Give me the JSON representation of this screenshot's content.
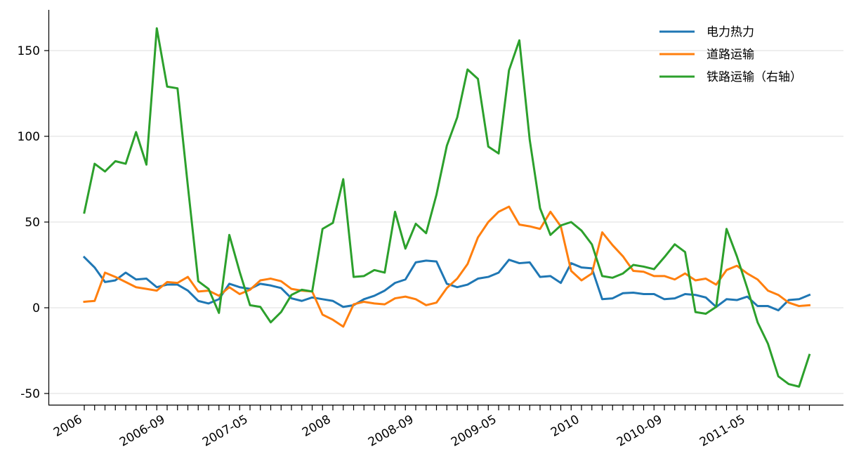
{
  "chart_data": {
    "type": "line",
    "title": "",
    "xlabel": "",
    "ylabel": "",
    "ylim": [
      -55,
      175
    ],
    "yticks": [
      -50,
      0,
      50,
      100,
      150
    ],
    "grid": "horizontal",
    "legend_position": "top-right",
    "x_tick_labels": [
      "2006",
      "2006-09",
      "2007-05",
      "2008",
      "2008-09",
      "2009-05",
      "2010",
      "2010-09",
      "2011-05"
    ],
    "x_tick_label_positions": [
      0,
      8,
      16,
      24,
      32,
      40,
      48,
      56,
      64
    ],
    "series": [
      {
        "name": "电力热力",
        "color": "#1f77b4",
        "values": [
          29.5,
          23.5,
          15.0,
          16.0,
          20.5,
          16.5,
          17.0,
          12.0,
          13.5,
          13.5,
          10.0,
          4.0,
          2.5,
          5.0,
          14.0,
          12.0,
          11.0,
          14.0,
          13.0,
          11.5,
          5.5,
          4.0,
          6.0,
          5.0,
          4.0,
          0.5,
          1.5,
          5.0,
          7.0,
          10.0,
          14.5,
          16.5,
          26.5,
          27.5,
          27.0,
          14.0,
          12.0,
          13.5,
          17.0,
          18.0,
          20.5,
          28.0,
          26.0,
          26.5,
          18.0,
          18.5,
          14.5,
          26.0,
          23.5,
          23.0,
          5.0,
          5.5,
          8.5,
          8.8,
          8.0,
          8.0,
          5.0,
          5.5,
          8.0,
          7.5,
          6.0,
          0.5,
          5.0,
          4.5,
          6.5,
          1.0,
          1.0,
          -1.5,
          4.5,
          5.0,
          7.5
        ]
      },
      {
        "name": "道路运输",
        "color": "#ff7f0e",
        "values": [
          3.5,
          4.0,
          20.5,
          18.0,
          15.0,
          12.0,
          11.0,
          10.0,
          15.0,
          14.5,
          18.0,
          9.5,
          10.0,
          7.0,
          12.0,
          8.0,
          10.5,
          16.0,
          17.0,
          15.5,
          11.0,
          10.0,
          9.5,
          -4.0,
          -7.0,
          -11.0,
          2.0,
          3.5,
          2.5,
          2.0,
          5.5,
          6.5,
          5.0,
          1.5,
          3.0,
          11.5,
          17.0,
          25.5,
          41.0,
          50.0,
          56.0,
          59.0,
          48.5,
          47.5,
          46.0,
          56.0,
          47.5,
          21.5,
          16.0,
          20.0,
          44.0,
          36.5,
          30.0,
          21.5,
          21.0,
          18.5,
          18.5,
          16.5,
          20.0,
          16.0,
          17.0,
          13.5,
          22.0,
          24.5,
          20.0,
          16.5,
          10.0,
          7.5,
          3.0,
          1.0,
          1.5
        ]
      },
      {
        "name": "铁路运输（右轴）",
        "color": "#2ca02c",
        "values": [
          55.5,
          84.0,
          79.5,
          85.5,
          84.0,
          102.5,
          83.5,
          163.0,
          129.0,
          128.0,
          71.0,
          15.5,
          11.0,
          -3.0,
          42.5,
          21.0,
          1.5,
          0.5,
          -8.5,
          -2.5,
          7.5,
          10.5,
          9.5,
          46.0,
          49.5,
          75.0,
          18.0,
          18.5,
          22.0,
          20.5,
          56.0,
          34.5,
          49.0,
          43.5,
          66.0,
          94.5,
          111.0,
          139.0,
          133.5,
          94.0,
          90.0,
          138.5,
          156.0,
          98.0,
          58.0,
          42.5,
          48.0,
          50.0,
          45.0,
          37.0,
          18.5,
          17.5,
          20.0,
          25.0,
          24.0,
          22.5,
          29.5,
          37.0,
          32.5,
          -2.5,
          -3.5,
          0.5,
          46.0,
          30.0,
          11.5,
          -8.5,
          -21.0,
          -40.0,
          -44.5,
          -46.0,
          -27.5
        ]
      }
    ]
  }
}
